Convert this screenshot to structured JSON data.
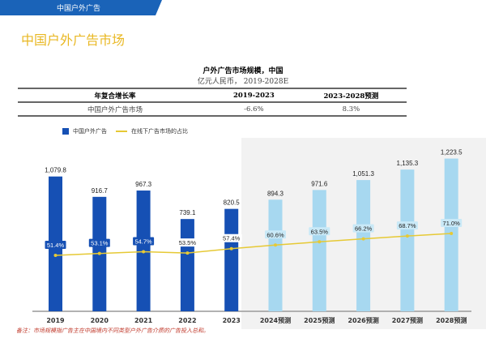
{
  "header": {
    "section": "中国户外广告",
    "title": "中国户外广告市场"
  },
  "chart_data": {
    "type": "bar",
    "title": "户外广告市场规模，中国",
    "subtitle": "亿元人民币， 2019-2028E",
    "categories": [
      "2019",
      "2020",
      "2021",
      "2022",
      "2023",
      "2024预测",
      "2025预测",
      "2026预测",
      "2027预测",
      "2028预测"
    ],
    "series": [
      {
        "name": "中国户外广告",
        "type": "bar",
        "values": [
          1079.8,
          916.7,
          967.3,
          739.1,
          820.5,
          894.3,
          971.6,
          1051.3,
          1135.3,
          1223.5
        ],
        "value_labels": [
          "1,079.8",
          "916.7",
          "967.3",
          "739.1",
          "820.5",
          "894.3",
          "971.6",
          "1,051.3",
          "1,135.3",
          "1,223.5"
        ]
      },
      {
        "name": "在线下广告市场的占比",
        "type": "line",
        "values": [
          51.4,
          53.1,
          54.7,
          53.5,
          57.4,
          60.6,
          63.5,
          66.2,
          68.7,
          71.0
        ],
        "value_labels": [
          "51.4%",
          "53.1%",
          "54.7%",
          "53.5%",
          "57.4%",
          "60.6%",
          "63.5%",
          "66.2%",
          "68.7%",
          "71.0%"
        ]
      }
    ],
    "forecast_shaded_from": "2024预测",
    "colors": {
      "actual": "#1650b4",
      "forecast": "#a7d8f0",
      "line": "#e6c935",
      "shade": "#f2f2f2"
    }
  },
  "cagr_table": {
    "headers": [
      "年复合增长率",
      "2019-2023",
      "2023-2028预测"
    ],
    "row": [
      "中国户外广告市场",
      "-6.6%",
      "8.3%"
    ]
  },
  "note": "备注：市场规模指广告主在中国境内不同类型户外广告介质的广告投入总和。"
}
